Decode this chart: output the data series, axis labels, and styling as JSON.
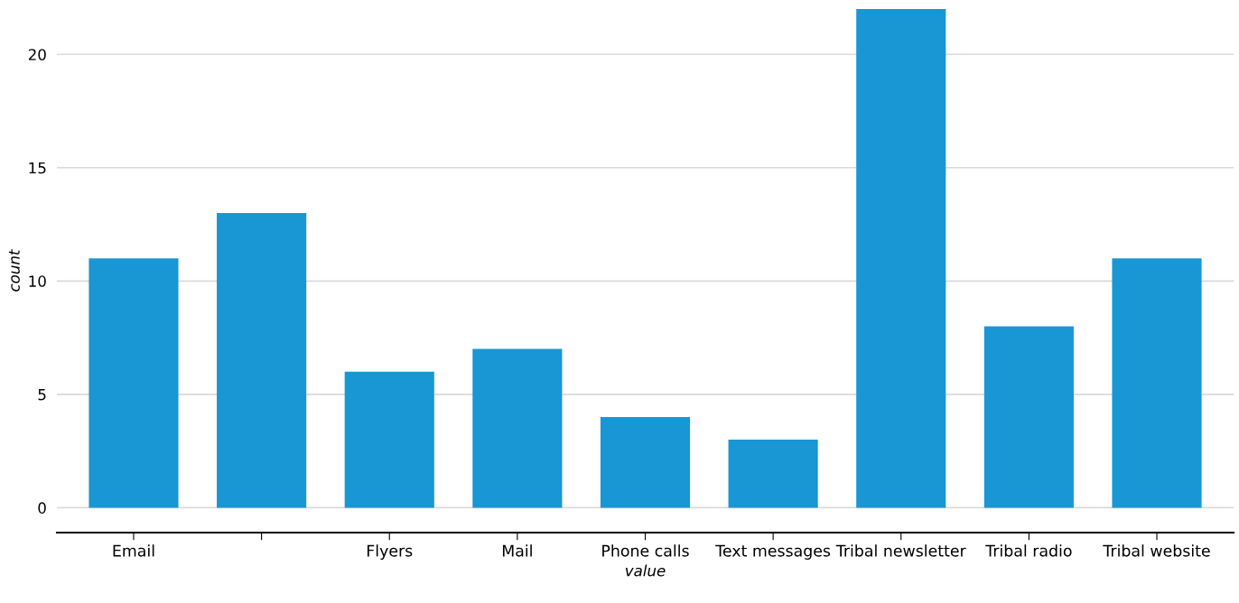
{
  "chart_data": {
    "type": "bar",
    "xlabel": "value",
    "ylabel": "count",
    "categories": [
      "Email",
      null,
      "Flyers",
      "Mail",
      "Phone calls",
      "Text messages",
      "Tribal newsletter",
      "Tribal radio",
      "Tribal website"
    ],
    "values": [
      11,
      13,
      6,
      7,
      4,
      3,
      22,
      8,
      11
    ],
    "color": "#1996d4",
    "ylim": [
      -1.1,
      22
    ],
    "yticks": [
      0,
      5,
      10,
      15,
      20
    ],
    "grid": "y"
  }
}
